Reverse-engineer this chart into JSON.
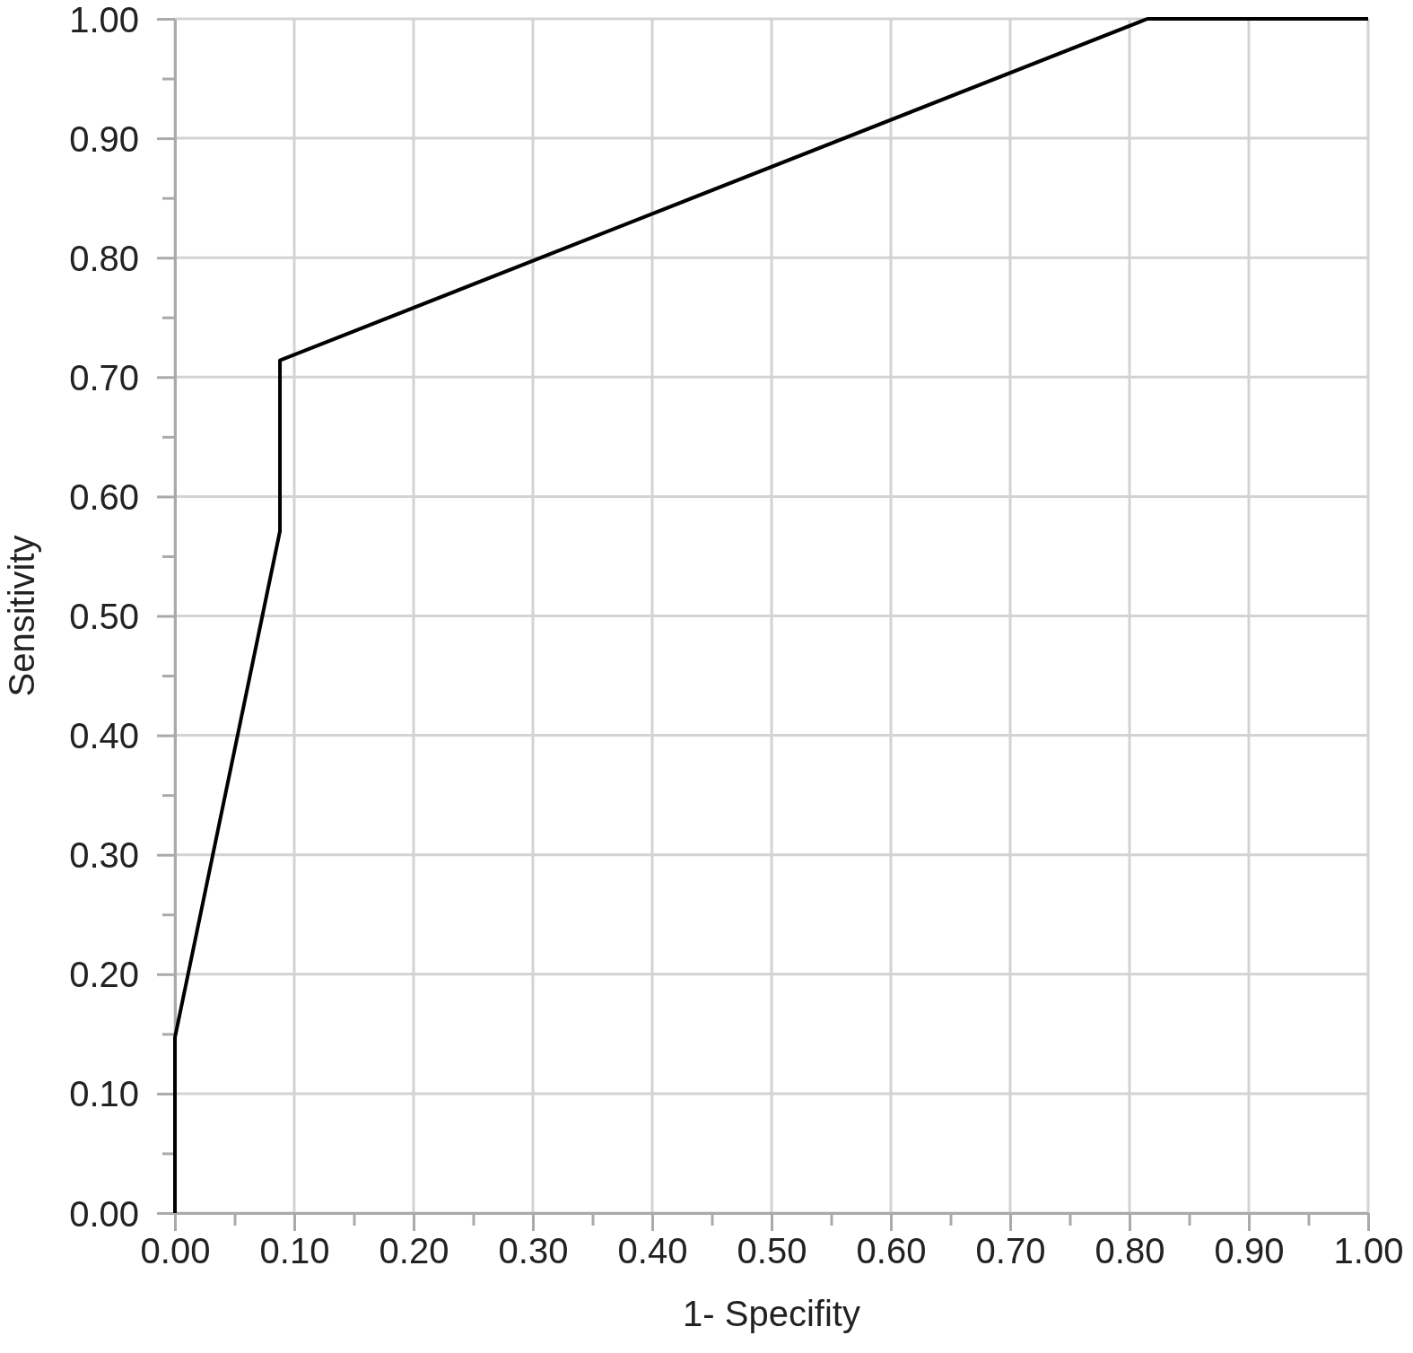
{
  "chart_data": {
    "type": "line",
    "xlabel": "1- Specifity",
    "ylabel": "Sensitivity",
    "x": [
      0,
      0,
      0.088,
      0.088,
      0.815,
      1.0
    ],
    "series": [
      {
        "color": "#000000",
        "values": [
          0,
          0.147,
          0.571,
          0.714,
          1.0,
          1.0
        ]
      }
    ],
    "xlim": [
      0,
      1
    ],
    "ylim": [
      0,
      1
    ],
    "xticks": [
      {
        "value": 0,
        "label": "0.00"
      },
      {
        "value": 0.05,
        "label": null
      },
      {
        "value": 0.1,
        "label": "0.10"
      },
      {
        "value": 0.15,
        "label": null
      },
      {
        "value": 0.2,
        "label": "0.20"
      },
      {
        "value": 0.25,
        "label": null
      },
      {
        "value": 0.3,
        "label": "0.30"
      },
      {
        "value": 0.35,
        "label": null
      },
      {
        "value": 0.4,
        "label": "0.40"
      },
      {
        "value": 0.45,
        "label": null
      },
      {
        "value": 0.5,
        "label": "0.50"
      },
      {
        "value": 0.55,
        "label": null
      },
      {
        "value": 0.6,
        "label": "0.60"
      },
      {
        "value": 0.65,
        "label": null
      },
      {
        "value": 0.7,
        "label": "0.70"
      },
      {
        "value": 0.75,
        "label": null
      },
      {
        "value": 0.8,
        "label": "0.80"
      },
      {
        "value": 0.85,
        "label": null
      },
      {
        "value": 0.9,
        "label": "0.90"
      },
      {
        "value": 0.95,
        "label": null
      },
      {
        "value": 1,
        "label": "1.00"
      }
    ],
    "yticks": [
      {
        "value": 0,
        "label": "0.00"
      },
      {
        "value": 0.05,
        "label": null
      },
      {
        "value": 0.1,
        "label": "0.10"
      },
      {
        "value": 0.15,
        "label": null
      },
      {
        "value": 0.2,
        "label": "0.20"
      },
      {
        "value": 0.25,
        "label": null
      },
      {
        "value": 0.3,
        "label": "0.30"
      },
      {
        "value": 0.35,
        "label": null
      },
      {
        "value": 0.4,
        "label": "0.40"
      },
      {
        "value": 0.45,
        "label": null
      },
      {
        "value": 0.5,
        "label": "0.50"
      },
      {
        "value": 0.55,
        "label": null
      },
      {
        "value": 0.6,
        "label": "0.60"
      },
      {
        "value": 0.65,
        "label": null
      },
      {
        "value": 0.7,
        "label": "0.70"
      },
      {
        "value": 0.75,
        "label": null
      },
      {
        "value": 0.8,
        "label": "0.80"
      },
      {
        "value": 0.85,
        "label": null
      },
      {
        "value": 0.9,
        "label": "0.90"
      },
      {
        "value": 0.95,
        "label": null
      },
      {
        "value": 1,
        "label": "1.00"
      }
    ],
    "grid": true,
    "marker": "none",
    "line_style": "solid"
  }
}
